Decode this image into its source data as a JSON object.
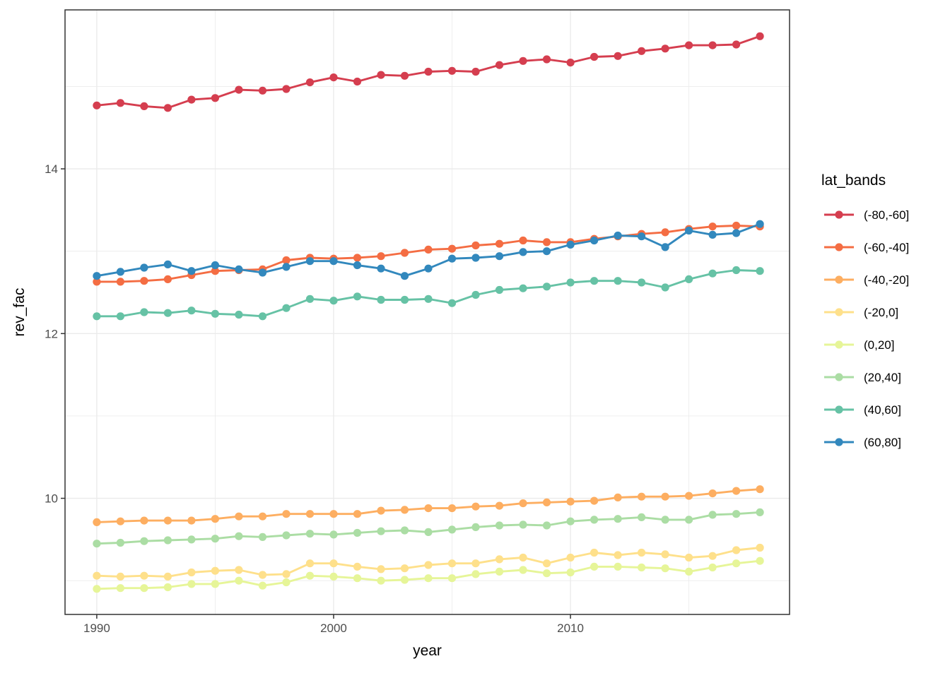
{
  "chart_data": {
    "type": "line",
    "title": "",
    "xlabel": "year",
    "ylabel": "rev_fac",
    "legend_title": "lat_bands",
    "legend_position": "right",
    "grid": true,
    "panel_background": "#ffffff",
    "gridline_color": "#ebebeb",
    "panel_border_color": "#333333",
    "tick_label_color": "#4d4d4d",
    "x_ticks": [
      1990,
      2000,
      2010
    ],
    "x_minor_ticks": [
      1995,
      2005,
      2015
    ],
    "y_ticks": [
      10,
      12,
      14
    ],
    "y_minor_ticks": [
      9,
      11,
      13,
      15
    ],
    "x_domain": [
      1988.66,
      2019.25
    ],
    "y_domain": [
      8.59,
      15.93
    ],
    "x": [
      1990,
      1991,
      1992,
      1993,
      1994,
      1995,
      1996,
      1997,
      1998,
      1999,
      2000,
      2001,
      2002,
      2003,
      2004,
      2005,
      2006,
      2007,
      2008,
      2009,
      2010,
      2011,
      2012,
      2013,
      2014,
      2015,
      2016,
      2017,
      2018
    ],
    "series": [
      {
        "name": "(-80,-60]",
        "color": "#d53e4f",
        "values": [
          14.77,
          14.8,
          14.76,
          14.74,
          14.84,
          14.86,
          14.96,
          14.95,
          14.97,
          15.05,
          15.11,
          15.06,
          15.14,
          15.13,
          15.18,
          15.19,
          15.18,
          15.26,
          15.31,
          15.33,
          15.29,
          15.36,
          15.37,
          15.43,
          15.46,
          15.5,
          15.5,
          15.51,
          15.61
        ]
      },
      {
        "name": "(-60,-40]",
        "color": "#f46d43",
        "values": [
          12.63,
          12.63,
          12.64,
          12.66,
          12.71,
          12.76,
          12.77,
          12.78,
          12.89,
          12.92,
          12.91,
          12.92,
          12.94,
          12.98,
          13.02,
          13.03,
          13.07,
          13.09,
          13.13,
          13.11,
          13.11,
          13.15,
          13.18,
          13.21,
          13.23,
          13.27,
          13.3,
          13.31,
          13.3
        ]
      },
      {
        "name": "(-40,-20]",
        "color": "#fdae61",
        "values": [
          9.71,
          9.72,
          9.73,
          9.73,
          9.73,
          9.75,
          9.78,
          9.78,
          9.81,
          9.81,
          9.81,
          9.81,
          9.85,
          9.86,
          9.88,
          9.88,
          9.9,
          9.91,
          9.94,
          9.95,
          9.96,
          9.97,
          10.01,
          10.02,
          10.02,
          10.03,
          10.06,
          10.09,
          10.11
        ]
      },
      {
        "name": "(-20,0]",
        "color": "#fee08b",
        "values": [
          9.06,
          9.05,
          9.06,
          9.05,
          9.1,
          9.12,
          9.13,
          9.07,
          9.08,
          9.21,
          9.21,
          9.17,
          9.14,
          9.15,
          9.19,
          9.21,
          9.21,
          9.26,
          9.28,
          9.21,
          9.28,
          9.34,
          9.31,
          9.34,
          9.32,
          9.28,
          9.3,
          9.37,
          9.4
        ]
      },
      {
        "name": "(0,20]",
        "color": "#e6f598",
        "values": [
          8.9,
          8.91,
          8.91,
          8.92,
          8.96,
          8.96,
          9.0,
          8.94,
          8.98,
          9.06,
          9.05,
          9.03,
          9.0,
          9.01,
          9.03,
          9.03,
          9.08,
          9.11,
          9.13,
          9.09,
          9.1,
          9.17,
          9.17,
          9.16,
          9.15,
          9.11,
          9.16,
          9.21,
          9.24
        ]
      },
      {
        "name": "(20,40]",
        "color": "#abdda4",
        "values": [
          9.45,
          9.46,
          9.48,
          9.49,
          9.5,
          9.51,
          9.54,
          9.53,
          9.55,
          9.57,
          9.56,
          9.58,
          9.6,
          9.61,
          9.59,
          9.62,
          9.65,
          9.67,
          9.68,
          9.67,
          9.72,
          9.74,
          9.75,
          9.77,
          9.74,
          9.74,
          9.8,
          9.81,
          9.83
        ]
      },
      {
        "name": "(40,60]",
        "color": "#66c2a5",
        "values": [
          12.21,
          12.21,
          12.26,
          12.25,
          12.28,
          12.24,
          12.23,
          12.21,
          12.31,
          12.42,
          12.4,
          12.45,
          12.41,
          12.41,
          12.42,
          12.37,
          12.47,
          12.53,
          12.55,
          12.57,
          12.62,
          12.64,
          12.64,
          12.62,
          12.56,
          12.66,
          12.73,
          12.77,
          12.76
        ]
      },
      {
        "name": "(60,80]",
        "color": "#3288bd",
        "values": [
          12.7,
          12.75,
          12.8,
          12.84,
          12.76,
          12.83,
          12.78,
          12.74,
          12.81,
          12.88,
          12.88,
          12.83,
          12.79,
          12.7,
          12.79,
          12.91,
          12.92,
          12.94,
          12.99,
          13.0,
          13.08,
          13.13,
          13.19,
          13.18,
          13.05,
          13.25,
          13.2,
          13.22,
          13.33
        ]
      }
    ]
  }
}
